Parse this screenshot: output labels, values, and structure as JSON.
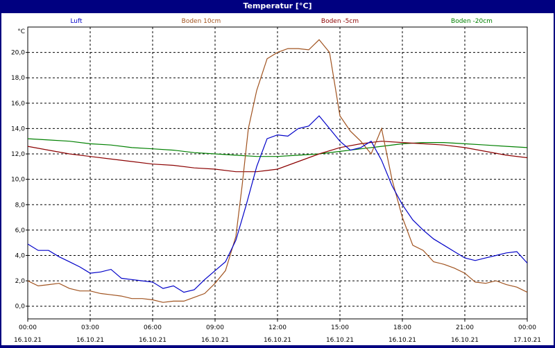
{
  "window": {
    "title": "Temperatur [°C]"
  },
  "chart_data": {
    "type": "line",
    "title": "Temperatur [°C]",
    "ylabel": "°C",
    "ylim": [
      -1,
      22
    ],
    "xlim_hours": [
      0,
      24
    ],
    "grid": true,
    "legend_position": "top",
    "y_ticks": [
      "0,0",
      "2,0",
      "4,0",
      "6,0",
      "8,0",
      "10,0",
      "12,0",
      "14,0",
      "16,0",
      "18,0",
      "20,0"
    ],
    "x_ticks": [
      {
        "time": "00:00",
        "date": "16.10.21"
      },
      {
        "time": "03:00",
        "date": "16.10.21"
      },
      {
        "time": "06:00",
        "date": "16.10.21"
      },
      {
        "time": "09:00",
        "date": "16.10.21"
      },
      {
        "time": "12:00",
        "date": "16.10.21"
      },
      {
        "time": "15:00",
        "date": "16.10.21"
      },
      {
        "time": "18:00",
        "date": "16.10.21"
      },
      {
        "time": "21:00",
        "date": "16.10.21"
      },
      {
        "time": "00:00",
        "date": "17.10.21"
      }
    ],
    "series": [
      {
        "name": "Luft",
        "color": "#0000c8",
        "x": [
          0,
          0.5,
          1,
          1.5,
          2,
          2.5,
          3,
          3.5,
          4,
          4.5,
          5,
          5.5,
          6,
          6.5,
          7,
          7.5,
          8,
          8.5,
          9,
          9.5,
          10,
          10.5,
          11,
          11.5,
          12,
          12.5,
          13,
          13.5,
          14,
          14.5,
          15,
          15.5,
          16,
          16.5,
          17,
          17.5,
          18,
          18.5,
          19,
          19.5,
          20,
          20.5,
          21,
          21.5,
          22,
          22.5,
          23,
          23.5,
          24
        ],
        "values": [
          4.9,
          4.4,
          4.4,
          3.9,
          3.5,
          3.1,
          2.6,
          2.7,
          2.9,
          2.2,
          2.1,
          2.0,
          1.9,
          1.4,
          1.6,
          1.1,
          1.3,
          2.1,
          2.8,
          3.5,
          5.2,
          8.0,
          11.0,
          13.2,
          13.5,
          13.4,
          14.0,
          14.2,
          15.0,
          14.0,
          13.0,
          12.3,
          12.5,
          13.0,
          11.5,
          9.5,
          8.0,
          6.8,
          6.0,
          5.3,
          4.8,
          4.3,
          3.8,
          3.6,
          3.8,
          4.0,
          4.2,
          4.3,
          3.4
        ]
      },
      {
        "name": "Boden 10cm",
        "color": "#a0521e",
        "x": [
          0,
          0.5,
          1,
          1.5,
          2,
          2.5,
          3,
          3.5,
          4,
          4.5,
          5,
          5.5,
          6,
          6.5,
          7,
          7.5,
          8,
          8.5,
          9,
          9.5,
          10,
          10.3,
          10.6,
          11,
          11.5,
          12,
          12.5,
          13,
          13.5,
          14,
          14.5,
          15,
          15.5,
          16,
          16.5,
          17,
          17.5,
          18,
          18.5,
          19,
          19.5,
          20,
          20.5,
          21,
          21.5,
          22,
          22.5,
          23,
          23.5,
          24
        ],
        "values": [
          2.0,
          1.6,
          1.7,
          1.8,
          1.4,
          1.2,
          1.2,
          1.0,
          0.9,
          0.8,
          0.6,
          0.6,
          0.5,
          0.3,
          0.4,
          0.4,
          0.7,
          1.0,
          1.8,
          2.8,
          5.5,
          9.5,
          14.0,
          17.0,
          19.5,
          20.0,
          20.3,
          20.3,
          20.2,
          21.0,
          20.0,
          15.0,
          13.8,
          13.0,
          12.0,
          14.0,
          10.0,
          7.0,
          4.8,
          4.4,
          3.5,
          3.3,
          3.0,
          2.6,
          1.9,
          1.8,
          2.0,
          1.7,
          1.5,
          1.1
        ]
      },
      {
        "name": "Boden -5cm",
        "color": "#8b0000",
        "x": [
          0,
          1,
          2,
          3,
          4,
          5,
          6,
          7,
          8,
          9,
          10,
          11,
          12,
          13,
          14,
          15,
          16,
          17,
          18,
          19,
          20,
          21,
          22,
          23,
          24
        ],
        "values": [
          12.6,
          12.3,
          12.0,
          11.8,
          11.6,
          11.4,
          11.2,
          11.1,
          10.9,
          10.8,
          10.6,
          10.6,
          10.8,
          11.4,
          12.0,
          12.5,
          12.8,
          13.0,
          12.9,
          12.8,
          12.7,
          12.5,
          12.2,
          11.9,
          11.7
        ]
      },
      {
        "name": "Boden -20cm",
        "color": "#008000",
        "x": [
          0,
          1,
          2,
          3,
          4,
          5,
          6,
          7,
          8,
          9,
          10,
          11,
          12,
          13,
          14,
          15,
          16,
          17,
          18,
          19,
          20,
          21,
          22,
          23,
          24
        ],
        "values": [
          13.2,
          13.1,
          13.0,
          12.8,
          12.7,
          12.5,
          12.4,
          12.3,
          12.1,
          12.0,
          11.9,
          11.8,
          11.8,
          11.9,
          12.0,
          12.2,
          12.4,
          12.6,
          12.8,
          12.9,
          12.9,
          12.8,
          12.7,
          12.6,
          12.5
        ]
      }
    ]
  }
}
